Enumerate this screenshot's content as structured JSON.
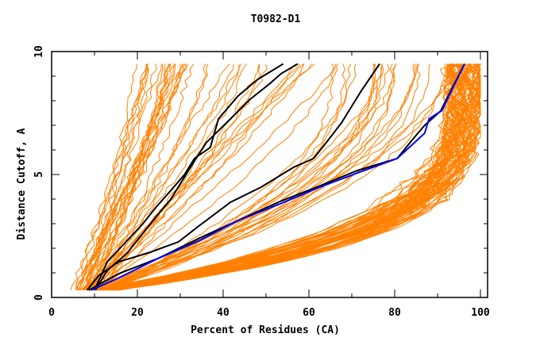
{
  "chart_data": {
    "type": "line",
    "title": "T0982-D1",
    "xlabel": "Percent of Residues (CA)",
    "ylabel": "Distance Cutoff, A",
    "xlim": [
      0,
      100
    ],
    "ylim": [
      0,
      10
    ],
    "x_ticks": [
      0,
      20,
      40,
      60,
      80,
      100
    ],
    "x_tick_labels": [
      "0",
      "20",
      "40",
      "60",
      "80",
      "100"
    ],
    "x_minor_ticks": [
      10,
      30,
      50,
      70,
      90
    ],
    "y_ticks": [
      0,
      5,
      10
    ],
    "y_tick_labels": [
      "0",
      "5",
      "10"
    ],
    "y_minor_ticks": [
      1,
      2,
      3,
      4,
      6,
      7,
      8,
      9
    ],
    "grid": false,
    "legend": "none",
    "colors": {
      "background_models": "#ff8000",
      "highlight": "#000000",
      "reference": "#0000ff"
    },
    "series": [
      {
        "name": "highlight-1",
        "color": "#000000",
        "points": [
          [
            10,
            0.3
          ],
          [
            13,
            1.45
          ],
          [
            17,
            2.2
          ],
          [
            21.3,
            3.0
          ],
          [
            24.5,
            3.7
          ],
          [
            27.8,
            4.35
          ],
          [
            31,
            5.0
          ],
          [
            33.3,
            5.65
          ],
          [
            37,
            6.1
          ],
          [
            38.9,
            7.26
          ],
          [
            43.5,
            8.2
          ],
          [
            48.1,
            8.87
          ],
          [
            54,
            9.5
          ]
        ]
      },
      {
        "name": "highlight-2",
        "color": "#000000",
        "points": [
          [
            10.2,
            0.3
          ],
          [
            13,
            1.1
          ],
          [
            17.6,
            1.8
          ],
          [
            24,
            3.2
          ],
          [
            27.8,
            4.0
          ],
          [
            32.4,
            5.3
          ],
          [
            36.1,
            6.3
          ],
          [
            41.7,
            7.26
          ],
          [
            46.3,
            8.06
          ],
          [
            50.9,
            8.7
          ],
          [
            53.5,
            9.1
          ],
          [
            57.4,
            9.5
          ]
        ]
      },
      {
        "name": "highlight-3",
        "color": "#000000",
        "points": [
          [
            8.3,
            0.3
          ],
          [
            11,
            0.9
          ],
          [
            15.7,
            1.45
          ],
          [
            23,
            1.84
          ],
          [
            29.6,
            2.26
          ],
          [
            34.3,
            2.9
          ],
          [
            41.7,
            3.87
          ],
          [
            49,
            4.5
          ],
          [
            56.5,
            5.3
          ],
          [
            61.1,
            5.65
          ],
          [
            64.5,
            6.4
          ],
          [
            67.6,
            7.1
          ],
          [
            72.2,
            8.4
          ],
          [
            76.5,
            9.5
          ]
        ]
      },
      {
        "name": "highlight-4",
        "color": "#000000",
        "points": [
          [
            8.7,
            0.3
          ],
          [
            15.7,
            0.97
          ],
          [
            25,
            1.6
          ],
          [
            34.3,
            2.4
          ],
          [
            43.5,
            3.13
          ],
          [
            52.8,
            3.87
          ],
          [
            62,
            4.5
          ],
          [
            71.3,
            5.16
          ],
          [
            80.6,
            5.65
          ],
          [
            84.3,
            6.45
          ],
          [
            87,
            7.0
          ],
          [
            90.7,
            7.58
          ],
          [
            96.3,
            9.5
          ]
        ]
      },
      {
        "name": "reference",
        "color": "#0000ff",
        "points": [
          [
            9.3,
            0.3
          ],
          [
            15.7,
            0.8
          ],
          [
            25,
            1.6
          ],
          [
            34.3,
            2.3
          ],
          [
            43.5,
            3.13
          ],
          [
            52.8,
            3.77
          ],
          [
            62,
            4.45
          ],
          [
            71.3,
            5.06
          ],
          [
            80.6,
            5.65
          ],
          [
            87,
            6.68
          ],
          [
            88,
            7.26
          ],
          [
            91,
            7.6
          ],
          [
            96.3,
            9.5
          ]
        ]
      }
    ],
    "background_models": {
      "color": "#ff8000",
      "count_visible_approx": 150,
      "groups": [
        {
          "name": "steep-left",
          "count": 22,
          "x_at_0.3": [
            4,
            10
          ],
          "x_at_9.5": [
            20,
            32
          ]
        },
        {
          "name": "mid-steep",
          "count": 20,
          "x_at_0.3": [
            7,
            12
          ],
          "x_at_9.5": [
            30,
            70
          ]
        },
        {
          "name": "mid-shallow",
          "count": 22,
          "x_at_0.3": [
            8,
            14
          ],
          "x_at_9.5": [
            65,
            94
          ]
        },
        {
          "name": "shallow-dense",
          "count": 70,
          "x_at_0.3": [
            9,
            16
          ],
          "x_at_9.5": [
            92,
            100
          ]
        }
      ]
    }
  }
}
